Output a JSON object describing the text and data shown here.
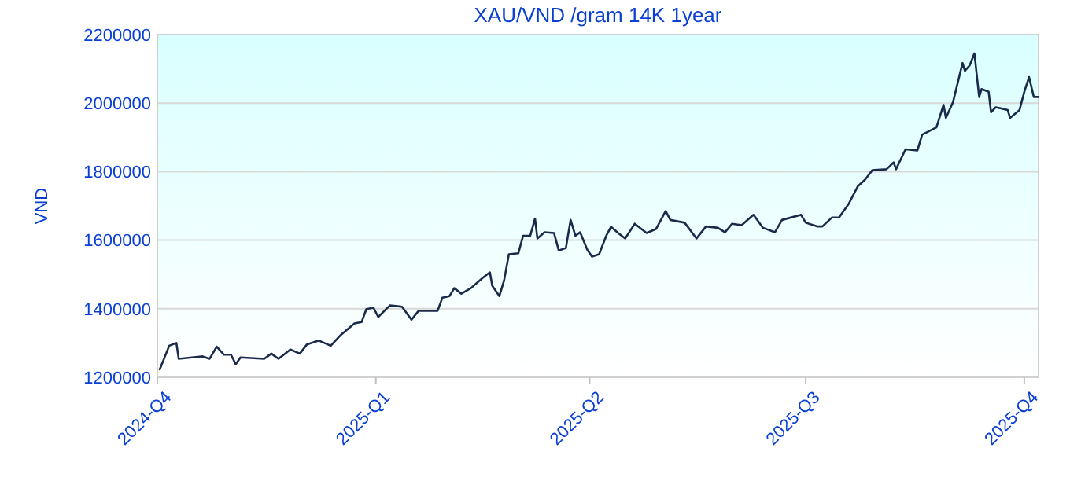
{
  "chart_data": {
    "type": "line",
    "title": "XAU/VND /gram 14K 1year",
    "ylabel": "VND",
    "x": [
      "2024-10-02",
      "2024-10-06",
      "2024-10-09",
      "2024-10-10",
      "2024-10-20",
      "2024-10-23",
      "2024-10-26",
      "2024-10-29",
      "2024-11-01",
      "2024-11-03",
      "2024-11-05",
      "2024-11-15",
      "2024-11-18",
      "2024-11-21",
      "2024-11-26",
      "2024-11-30",
      "2024-12-03",
      "2024-12-08",
      "2024-12-13",
      "2024-12-17",
      "2024-12-23",
      "2024-12-26",
      "2024-12-28",
      "2024-12-31",
      "2025-01-02",
      "2025-01-07",
      "2025-01-12",
      "2025-01-16",
      "2025-01-19",
      "2025-01-27",
      "2025-01-29",
      "2025-02-01",
      "2025-02-03",
      "2025-02-06",
      "2025-02-10",
      "2025-02-15",
      "2025-02-18",
      "2025-02-19",
      "2025-02-22",
      "2025-02-24",
      "2025-02-26",
      "2025-03-02",
      "2025-03-04",
      "2025-03-07",
      "2025-03-09",
      "2025-03-10",
      "2025-03-13",
      "2025-03-17",
      "2025-03-19",
      "2025-03-22",
      "2025-03-24",
      "2025-03-26",
      "2025-03-28",
      "2025-03-31",
      "2025-04-02",
      "2025-04-05",
      "2025-04-08",
      "2025-04-10",
      "2025-04-13",
      "2025-04-16",
      "2025-04-20",
      "2025-04-25",
      "2025-04-29",
      "2025-05-03",
      "2025-05-05",
      "2025-05-11",
      "2025-05-16",
      "2025-05-20",
      "2025-05-25",
      "2025-05-28",
      "2025-05-31",
      "2025-06-04",
      "2025-06-09",
      "2025-06-13",
      "2025-06-18",
      "2025-06-21",
      "2025-06-29",
      "2025-07-01",
      "2025-07-06",
      "2025-07-08",
      "2025-07-12",
      "2025-07-15",
      "2025-07-19",
      "2025-07-23",
      "2025-07-26",
      "2025-07-29",
      "2025-08-04",
      "2025-08-07",
      "2025-08-08",
      "2025-08-12",
      "2025-08-17",
      "2025-08-19",
      "2025-08-25",
      "2025-08-28",
      "2025-08-29",
      "2025-09-01",
      "2025-09-05",
      "2025-09-06",
      "2025-09-08",
      "2025-09-10",
      "2025-09-12",
      "2025-09-13",
      "2025-09-16",
      "2025-09-17",
      "2025-09-19",
      "2025-09-24",
      "2025-09-25",
      "2025-09-29",
      "2025-10-01",
      "2025-10-03",
      "2025-10-05",
      "2025-10-07"
    ],
    "series": [
      {
        "color": "#1a2a4a",
        "values": [
          1223000,
          1292000,
          1300000,
          1254000,
          1261000,
          1254000,
          1289000,
          1266000,
          1266000,
          1238000,
          1258000,
          1254000,
          1269000,
          1254000,
          1281000,
          1269000,
          1296000,
          1307000,
          1292000,
          1322000,
          1357000,
          1361000,
          1399000,
          1403000,
          1376000,
          1410000,
          1406000,
          1368000,
          1394000,
          1394000,
          1432000,
          1437000,
          1460000,
          1444000,
          1460000,
          1490000,
          1506000,
          1467000,
          1437000,
          1483000,
          1559000,
          1562000,
          1613000,
          1613000,
          1663000,
          1605000,
          1623000,
          1621000,
          1570000,
          1577000,
          1659000,
          1613000,
          1623000,
          1572000,
          1552000,
          1559000,
          1613000,
          1639000,
          1621000,
          1605000,
          1648000,
          1621000,
          1633000,
          1685000,
          1659000,
          1651000,
          1605000,
          1640000,
          1636000,
          1623000,
          1648000,
          1644000,
          1674000,
          1636000,
          1623000,
          1659000,
          1674000,
          1651000,
          1640000,
          1640000,
          1666000,
          1666000,
          1705000,
          1758000,
          1777000,
          1804000,
          1807000,
          1827000,
          1807000,
          1865000,
          1862000,
          1908000,
          1929000,
          1995000,
          1957000,
          2003000,
          2117000,
          2094000,
          2110000,
          2145000,
          2018000,
          2041000,
          2033000,
          1973000,
          1988000,
          1980000,
          1957000,
          1980000,
          2033000,
          2076000,
          2018000,
          2018000
        ]
      }
    ],
    "xlim": [
      "2024-10-01",
      "2025-10-07"
    ],
    "xticks": [
      {
        "value": "2024-10-01",
        "label": "2024-Q4"
      },
      {
        "value": "2025-01-01",
        "label": "2025-Q1"
      },
      {
        "value": "2025-04-01",
        "label": "2025-Q2"
      },
      {
        "value": "2025-07-01",
        "label": "2025-Q3"
      },
      {
        "value": "2025-10-01",
        "label": "2025-Q4"
      }
    ],
    "ylim": [
      1200000,
      2200000
    ],
    "yticks": [
      1200000,
      1400000,
      1600000,
      1800000,
      2000000,
      2200000
    ],
    "grid": "y",
    "marker": "none",
    "line_style": "solid"
  }
}
